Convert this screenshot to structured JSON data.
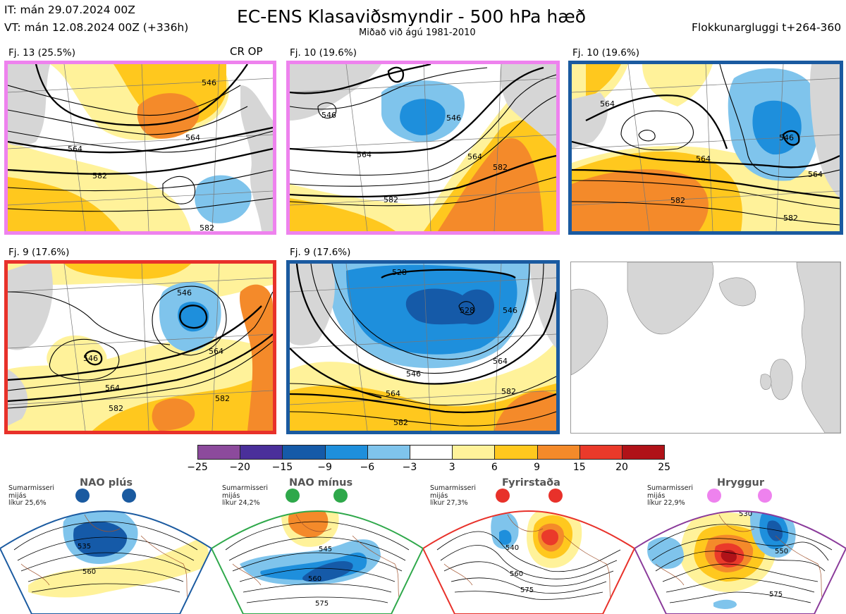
{
  "header": {
    "it_line": "IT: mán 29.07.2024 00Z",
    "vt_line": "VT: mán 12.08.2024 00Z  (+336h)",
    "title": "EC-ENS Klasaviðsmyndir - 500 hPa hæð",
    "subtitle": "Miðað við ágú 1981-2010",
    "window": "Flokkunargluggi t+264-360"
  },
  "colors": {
    "pink": "#ee82ee",
    "blue": "#1a5aa0",
    "red": "#e8312a",
    "green": "#2ea84a",
    "purple": "#8a3a9a",
    "land": "#d6d6d6"
  },
  "clusters": [
    {
      "label": "Fj. 13 (25.5%)",
      "extra": "CR OP",
      "frame": "pink",
      "contours": [
        "546",
        "564",
        "564",
        "582",
        "582"
      ]
    },
    {
      "label": "Fj. 10 (19.6%)",
      "extra": "",
      "frame": "pink",
      "contours": [
        "546",
        "546",
        "564",
        "564",
        "582",
        "582"
      ]
    },
    {
      "label": "Fj. 10 (19.6%)",
      "extra": "",
      "frame": "blue",
      "contours": [
        "564",
        "546",
        "564",
        "564",
        "582",
        "582"
      ]
    },
    {
      "label": "Fj. 9 (17.6%)",
      "extra": "",
      "frame": "red",
      "contours": [
        "546",
        "546",
        "564",
        "564",
        "582",
        "582"
      ]
    },
    {
      "label": "Fj. 9 (17.6%)",
      "extra": "",
      "frame": "blue",
      "contours": [
        "528",
        "528",
        "546",
        "546",
        "564",
        "564",
        "582",
        "582"
      ]
    }
  ],
  "colorbar": {
    "colors": [
      "#8c4a9c",
      "#4a2f9a",
      "#155aa8",
      "#1e8fdc",
      "#7fc4ec",
      "#ffffff",
      "#fff29a",
      "#ffc81e",
      "#f48a2a",
      "#ea3a2a",
      "#b01218"
    ],
    "ticks": [
      "−25",
      "−20",
      "−15",
      "−9",
      "−6",
      "−3",
      "3",
      "6",
      "9",
      "15",
      "20",
      "25"
    ]
  },
  "regimes": [
    {
      "name": "NAO plús",
      "note": "Sumarmisseri\nmijás\nlíkur 25,6%",
      "color": "blue",
      "contours": [
        "535",
        "560"
      ]
    },
    {
      "name": "NAO mínus",
      "note": "Sumarmisseri\nmijás\nlíkur 24,2%",
      "color": "green",
      "contours": [
        "545",
        "560",
        "575"
      ]
    },
    {
      "name": "Fyrirstaða",
      "note": "Sumarmisseri\nmijás\nlíkur 27,3%",
      "color": "red",
      "contours": [
        "540",
        "560",
        "575"
      ]
    },
    {
      "name": "Hryggur",
      "note": "Sumarmisseri\nmijás\nlíkur 22,9%",
      "color": "purple",
      "contours": [
        "530",
        "550",
        "575"
      ]
    }
  ]
}
